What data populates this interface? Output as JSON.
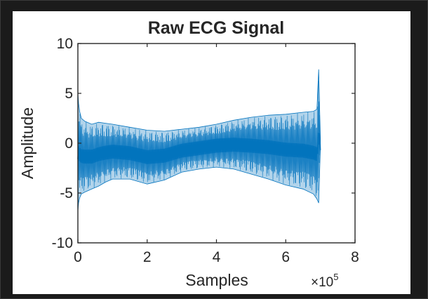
{
  "chart_data": {
    "type": "line",
    "title": "Raw ECG Signal",
    "xlabel": "Samples",
    "ylabel": "Amplitude",
    "xlim": [
      0,
      8
    ],
    "ylim": [
      -10,
      10
    ],
    "x_ticks": [
      "0",
      "2",
      "4",
      "6",
      "8"
    ],
    "y_ticks": [
      "10",
      "5",
      "0",
      "-5",
      "-10"
    ],
    "x_exponent": {
      "base": "×10",
      "power": "5"
    },
    "grid": false,
    "series": [
      {
        "color": "#0072bd",
        "x": [
          0,
          0.02,
          0.05,
          0.1,
          0.2,
          0.4,
          0.6,
          0.8,
          1.0,
          1.5,
          2.0,
          2.5,
          3.0,
          3.5,
          4.0,
          4.5,
          5.0,
          5.5,
          6.0,
          6.5,
          6.8,
          6.9,
          6.95,
          7.0
        ],
        "upper": [
          5.0,
          4.0,
          3.2,
          2.5,
          2.2,
          1.9,
          2.1,
          2.0,
          1.9,
          1.6,
          1.3,
          1.2,
          1.4,
          1.6,
          1.9,
          2.3,
          2.6,
          2.8,
          2.9,
          3.1,
          3.2,
          3.4,
          7.4,
          0.5
        ],
        "lower": [
          -6.8,
          -6.0,
          -5.5,
          -5.1,
          -4.9,
          -4.6,
          -4.3,
          -3.9,
          -3.6,
          -3.6,
          -4.1,
          -3.7,
          -2.9,
          -2.6,
          -2.4,
          -2.6,
          -3.1,
          -3.6,
          -4.2,
          -4.6,
          -5.1,
          -5.6,
          -6.0,
          -0.5
        ]
      }
    ]
  },
  "colors": {
    "background": "#1b1b1b",
    "panel": "#ffffff",
    "axis": "#262626",
    "signal": "#0072bd"
  }
}
